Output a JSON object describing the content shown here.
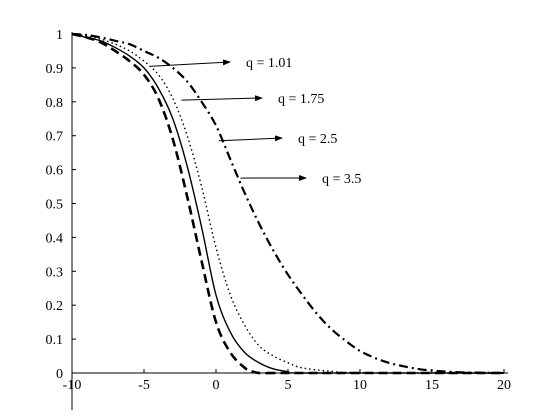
{
  "chart_data": {
    "type": "line",
    "title": "",
    "xlabel": "",
    "ylabel": "",
    "xlim": [
      -10,
      20
    ],
    "ylim": [
      0,
      1
    ],
    "grid": false,
    "legend": "none",
    "x_ticks": [
      "-10",
      "-5",
      "0",
      "5",
      "10",
      "15",
      "20"
    ],
    "y_ticks": [
      "0",
      "0.1",
      "0.2",
      "0.3",
      "0.4",
      "0.5",
      "0.6",
      "0.7",
      "0.8",
      "0.9",
      "1"
    ],
    "series": [
      {
        "style": "dashed-bold",
        "x": [
          -10,
          -9,
          -8,
          -7,
          -6,
          -5,
          -4,
          -3,
          -2,
          -1,
          0,
          1,
          2,
          2.5,
          3,
          4,
          5,
          20
        ],
        "y": [
          1.0,
          0.99,
          0.975,
          0.95,
          0.92,
          0.88,
          0.81,
          0.69,
          0.52,
          0.33,
          0.15,
          0.06,
          0.015,
          0.005,
          0.0,
          0.0,
          0.0,
          0.0
        ]
      },
      {
        "style": "solid",
        "x": [
          -10,
          -9,
          -8,
          -7,
          -6,
          -5,
          -4,
          -3,
          -2,
          -1,
          0,
          1,
          2,
          3,
          4,
          5,
          6,
          20
        ],
        "y": [
          1.0,
          0.99,
          0.98,
          0.96,
          0.935,
          0.9,
          0.84,
          0.75,
          0.61,
          0.43,
          0.23,
          0.12,
          0.06,
          0.03,
          0.012,
          0.004,
          0.0,
          0.0
        ]
      },
      {
        "style": "dotted",
        "x": [
          -10,
          -9,
          -8,
          -7,
          -6,
          -5,
          -4,
          -3,
          -2,
          -1,
          0,
          1,
          2,
          3,
          4,
          5,
          6,
          8,
          10,
          20
        ],
        "y": [
          1.0,
          0.995,
          0.985,
          0.97,
          0.95,
          0.92,
          0.88,
          0.81,
          0.7,
          0.55,
          0.37,
          0.23,
          0.14,
          0.08,
          0.05,
          0.03,
          0.015,
          0.005,
          0.001,
          0.0
        ]
      },
      {
        "style": "dash-dot",
        "x": [
          -10,
          -9,
          -8,
          -7,
          -6,
          -5,
          -4,
          -3,
          -2,
          -1,
          0,
          1,
          2,
          3,
          4,
          5,
          6,
          7,
          8,
          9,
          10,
          11,
          12,
          13,
          14,
          15,
          16,
          17,
          18,
          20
        ],
        "y": [
          1.0,
          0.997,
          0.99,
          0.98,
          0.97,
          0.95,
          0.93,
          0.9,
          0.86,
          0.8,
          0.73,
          0.63,
          0.53,
          0.44,
          0.36,
          0.29,
          0.23,
          0.175,
          0.13,
          0.095,
          0.065,
          0.045,
          0.03,
          0.02,
          0.012,
          0.007,
          0.004,
          0.002,
          0.001,
          0.0
        ]
      }
    ],
    "annotations": [
      {
        "text": "q = 1.01",
        "arrow_from": [
          -4.5,
          0.905
        ]
      },
      {
        "text": "q = 1.75",
        "arrow_from": [
          -2.4,
          0.805
        ]
      },
      {
        "text": "q = 2.5",
        "arrow_from": [
          0.2,
          0.685
        ]
      },
      {
        "text": "q = 3.5",
        "arrow_from": [
          1.7,
          0.575
        ]
      }
    ]
  }
}
